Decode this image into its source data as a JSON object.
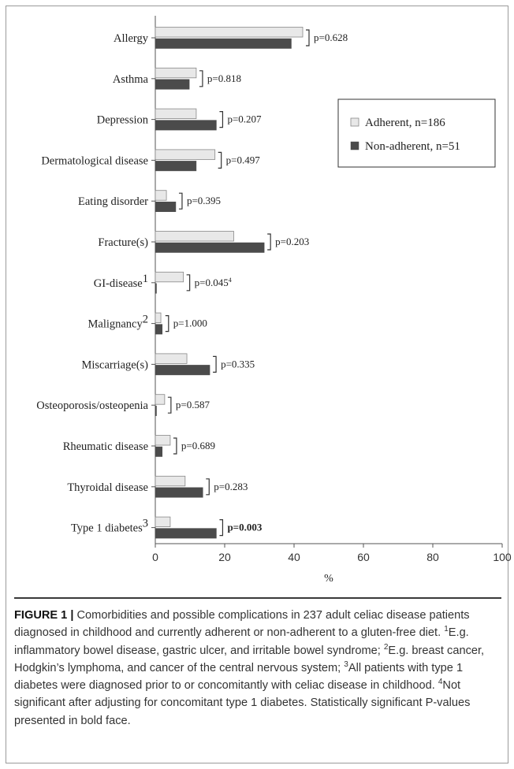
{
  "chart_data": {
    "type": "bar",
    "orientation": "horizontal",
    "categories": [
      "Allergy",
      "Asthma",
      "Depression",
      "Dermatological disease",
      "Eating disorder",
      "Fracture(s)",
      "GI-disease",
      "Malignancy",
      "Miscarriage(s)",
      "Osteoporosis/osteopenia",
      "Rheumatic disease",
      "Thyroidal disease",
      "Type 1 diabetes"
    ],
    "category_superscripts": [
      "",
      "",
      "",
      "",
      "",
      "",
      "1",
      "2",
      "",
      "",
      "",
      "",
      "3"
    ],
    "series": [
      {
        "name": "Adherent, n=186",
        "values": [
          42.5,
          11.8,
          11.8,
          17.2,
          3.2,
          22.6,
          8.1,
          1.6,
          9.1,
          2.7,
          4.3,
          8.6,
          4.3
        ]
      },
      {
        "name": "Non-adherent, n=51",
        "values": [
          39.2,
          9.8,
          17.6,
          11.8,
          5.9,
          31.4,
          0,
          2.0,
          15.7,
          0,
          2.0,
          13.7,
          17.6
        ]
      }
    ],
    "p_values": [
      {
        "text": "p=0.628",
        "sup": "",
        "bold": false
      },
      {
        "text": "p=0.818",
        "sup": "",
        "bold": false
      },
      {
        "text": "p=0.207",
        "sup": "",
        "bold": false
      },
      {
        "text": "p=0.497",
        "sup": "",
        "bold": false
      },
      {
        "text": "p=0.395",
        "sup": "",
        "bold": false
      },
      {
        "text": "p=0.203",
        "sup": "",
        "bold": false
      },
      {
        "text": "p=0.045",
        "sup": "4",
        "bold": false
      },
      {
        "text": "p=1.000",
        "sup": "",
        "bold": false
      },
      {
        "text": "p=0.335",
        "sup": "",
        "bold": false
      },
      {
        "text": "p=0.587",
        "sup": "",
        "bold": false
      },
      {
        "text": "p=0.689",
        "sup": "",
        "bold": false
      },
      {
        "text": "p=0.283",
        "sup": "",
        "bold": false
      },
      {
        "text": "p=0.003",
        "sup": "",
        "bold": true
      }
    ],
    "xlabel": "%",
    "xlim": [
      0,
      100
    ],
    "xticks": [
      0,
      20,
      40,
      60,
      80,
      100
    ],
    "grid": false,
    "legend_position": "top-right",
    "colors": {
      "adherent": "#e8e8e8",
      "non_adherent": "#4b4b4b",
      "edge": "#888888"
    }
  },
  "caption": {
    "label": "FIGURE 1 |",
    "text": " Comorbidities and possible complications in 237 adult celiac disease patients diagnosed in childhood and currently adherent or non-adherent to a gluten-free diet. ",
    "note1_mark": "1",
    "note1": "E.g. inflammatory bowel disease, gastric ulcer, and irritable bowel syndrome; ",
    "note2_mark": "2",
    "note2": "E.g. breast cancer, Hodgkin’s lymphoma, and cancer of the central nervous system; ",
    "note3_mark": "3",
    "note3": "All patients with type 1 diabetes were diagnosed prior to or concomitantly with celiac disease in childhood. ",
    "note4_mark": "4",
    "note4": "Not significant after adjusting for concomitant type 1 diabetes. Statistically significant P-values presented in bold face."
  }
}
